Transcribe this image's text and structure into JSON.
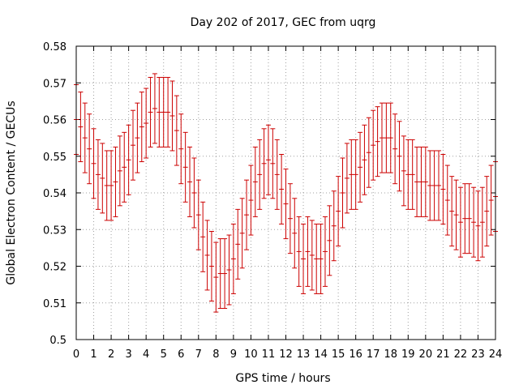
{
  "chart_data": {
    "type": "scatter",
    "title": "Day 202 of 2017, GEC from uqrg",
    "xlabel": "GPS time / hours",
    "ylabel": "Global Electron Content / GECUs",
    "xlim": [
      0,
      24
    ],
    "ylim": [
      0.5,
      0.58
    ],
    "xticks": [
      "0",
      "1",
      "2",
      "3",
      "4",
      "5",
      "6",
      "7",
      "8",
      "9",
      "10",
      "11",
      "12",
      "13",
      "14",
      "15",
      "16",
      "17",
      "18",
      "19",
      "20",
      "21",
      "22",
      "23",
      "24"
    ],
    "yticks": [
      "0.5",
      "0.51",
      "0.52",
      "0.53",
      "0.54",
      "0.55",
      "0.56",
      "0.57",
      "0.58"
    ],
    "grid": true,
    "error_bars": true,
    "error_half_width": 0.0095,
    "color": "#cc0000",
    "series": [
      {
        "x": [
          0,
          0.25,
          0.5,
          0.75,
          1,
          1.25,
          1.5,
          1.75,
          2,
          2.25,
          2.5,
          2.75,
          3,
          3.25,
          3.5,
          3.75,
          4,
          4.25,
          4.5,
          4.75,
          5,
          5.25,
          5.5,
          5.75,
          6,
          6.25,
          6.5,
          6.75,
          7,
          7.25,
          7.5,
          7.75,
          8,
          8.25,
          8.5,
          8.75,
          9,
          9.25,
          9.5,
          9.75,
          10,
          10.25,
          10.5,
          10.75,
          11,
          11.25,
          11.5,
          11.75,
          12,
          12.25,
          12.5,
          12.75,
          13,
          13.25,
          13.5,
          13.75,
          14,
          14.25,
          14.5,
          14.75,
          15,
          15.25,
          15.5,
          15.75,
          16,
          16.25,
          16.5,
          16.75,
          17,
          17.25,
          17.5,
          17.75,
          18,
          18.25,
          18.5,
          18.75,
          19,
          19.25,
          19.5,
          19.75,
          20,
          20.25,
          20.5,
          20.75,
          21,
          21.25,
          21.5,
          21.75,
          22,
          22.25,
          22.5,
          22.75,
          23,
          23.25,
          23.5,
          23.75,
          24
        ],
        "y": [
          0.56,
          0.558,
          0.555,
          0.552,
          0.548,
          0.545,
          0.544,
          0.542,
          0.542,
          0.543,
          0.546,
          0.547,
          0.549,
          0.553,
          0.555,
          0.558,
          0.559,
          0.562,
          0.563,
          0.562,
          0.562,
          0.562,
          0.561,
          0.557,
          0.552,
          0.547,
          0.543,
          0.54,
          0.534,
          0.528,
          0.523,
          0.52,
          0.517,
          0.518,
          0.518,
          0.519,
          0.522,
          0.526,
          0.529,
          0.534,
          0.538,
          0.543,
          0.545,
          0.548,
          0.549,
          0.548,
          0.545,
          0.541,
          0.537,
          0.533,
          0.529,
          0.524,
          0.522,
          0.524,
          0.523,
          0.522,
          0.522,
          0.524,
          0.527,
          0.531,
          0.535,
          0.54,
          0.544,
          0.545,
          0.545,
          0.547,
          0.549,
          0.551,
          0.553,
          0.554,
          0.555,
          0.555,
          0.555,
          0.552,
          0.55,
          0.546,
          0.545,
          0.545,
          0.543,
          0.543,
          0.543,
          0.542,
          0.542,
          0.542,
          0.541,
          0.538,
          0.535,
          0.534,
          0.532,
          0.533,
          0.533,
          0.532,
          0.531,
          0.532,
          0.535,
          0.538,
          0.539
        ]
      }
    ]
  }
}
